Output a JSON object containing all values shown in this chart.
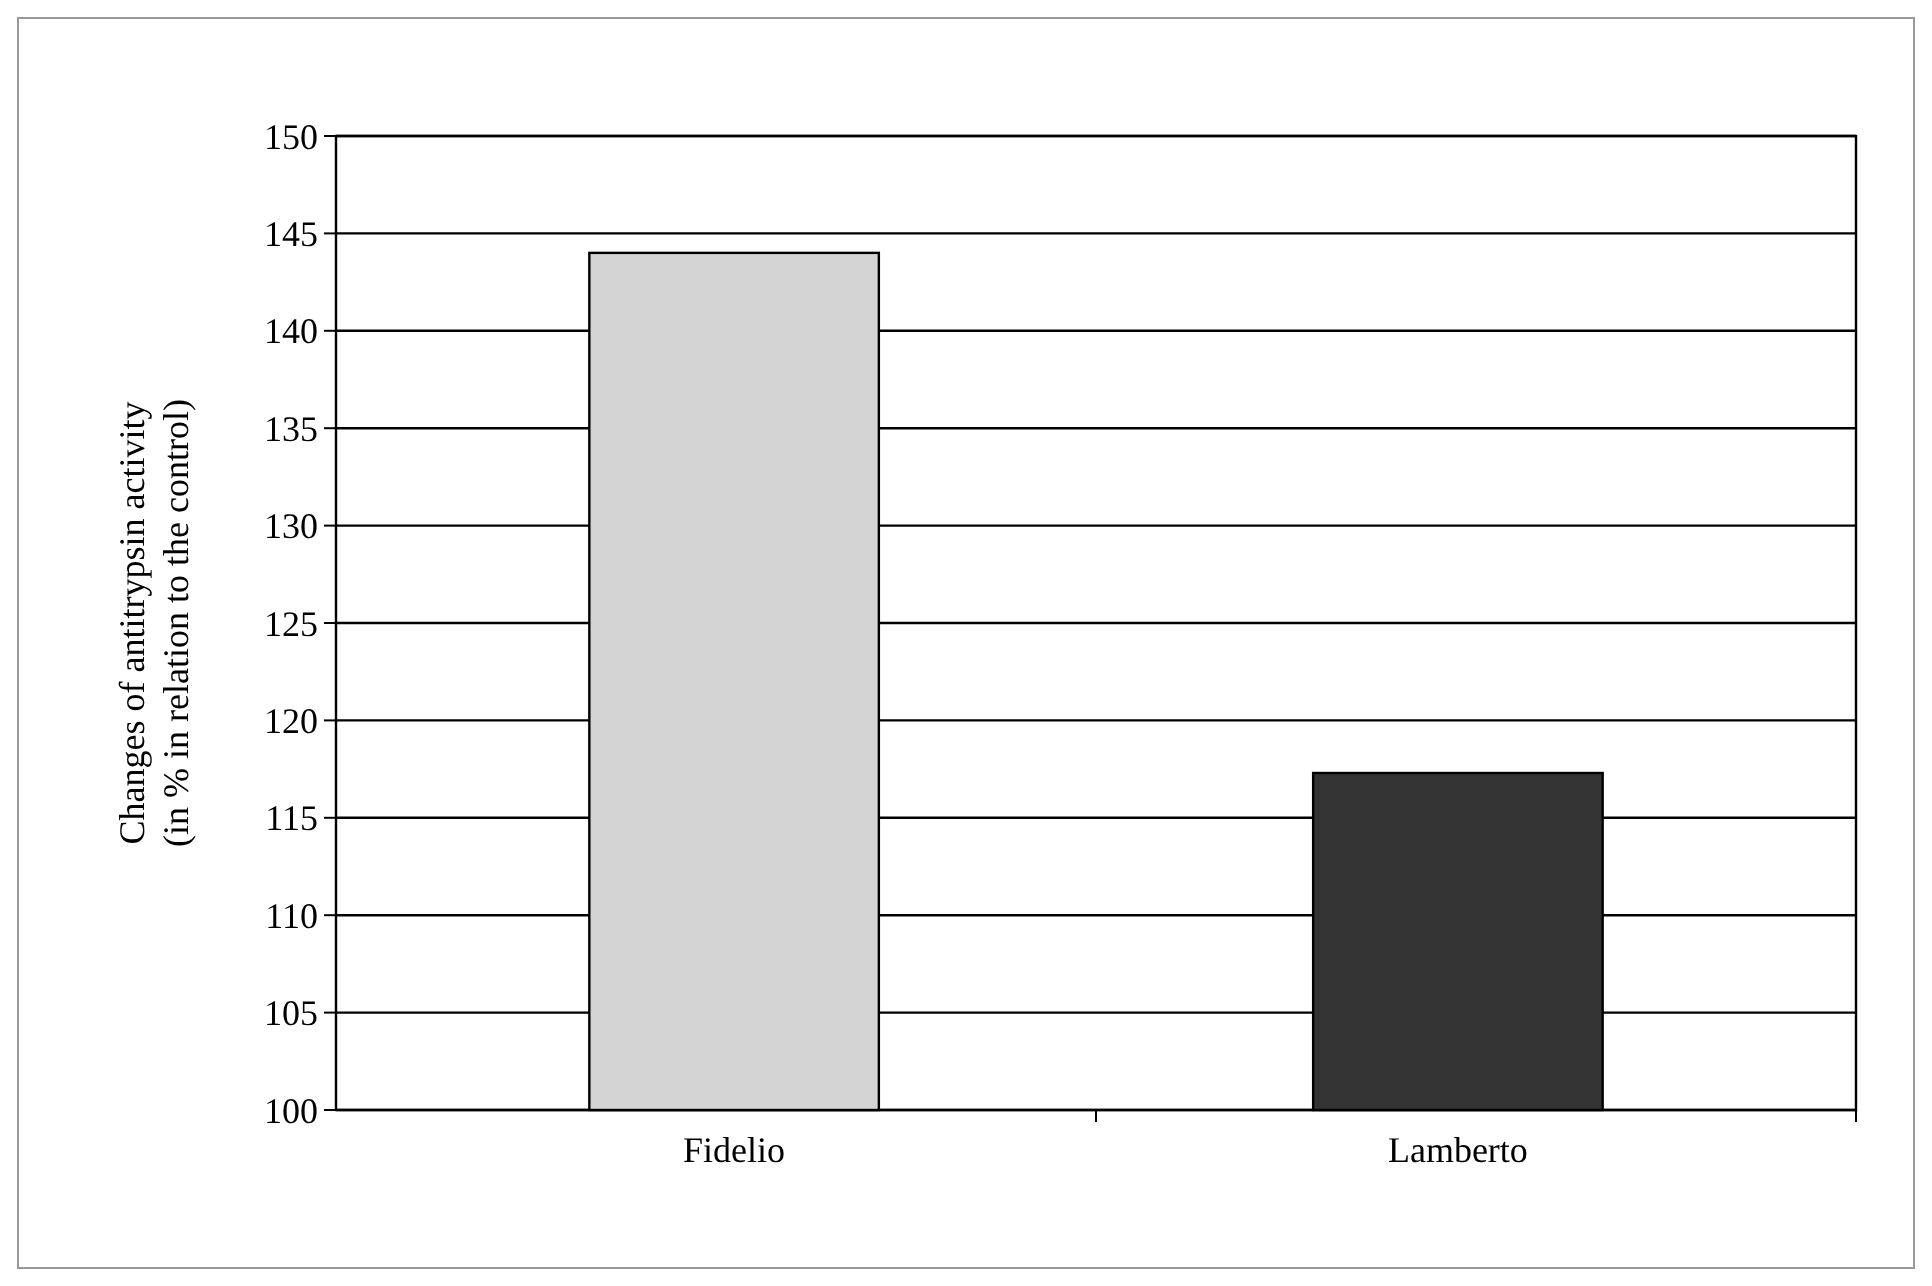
{
  "chart_data": {
    "type": "bar",
    "ylabel": "Changes of antitrypsin activity\n(in % in relation to the control)",
    "categories": [
      "Fidelio",
      "Lamberto"
    ],
    "values": [
      144,
      117.3
    ],
    "colors": [
      "#d4d4d4",
      "#333333"
    ],
    "ylim": [
      100,
      150
    ],
    "yticks": [
      100,
      105,
      110,
      115,
      120,
      125,
      130,
      135,
      140,
      145,
      150
    ],
    "grid": "y"
  }
}
